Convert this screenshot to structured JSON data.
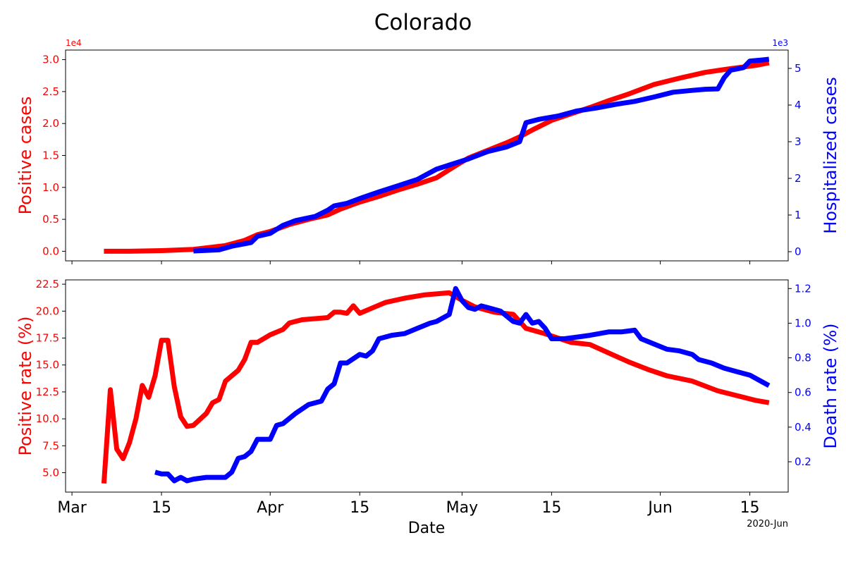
{
  "title": "Colorado",
  "chart_data": [
    {
      "type": "line",
      "panel": "top",
      "xlabel": "",
      "ylabel_left": "Positive cases",
      "ylabel_right": "Hospitalized cases",
      "offset_left": "1e4",
      "offset_right": "1e3",
      "ylim_left": [
        -0.15,
        3.15
      ],
      "ylim_right": [
        -0.25,
        5.5
      ],
      "yticks_left": [
        0.0,
        0.5,
        1.0,
        1.5,
        2.0,
        2.5,
        3.0
      ],
      "ytick_labels_left": [
        "0.0",
        "0.5",
        "1.0",
        "1.5",
        "2.0",
        "2.5",
        "3.0"
      ],
      "yticks_right": [
        0,
        1,
        2,
        3,
        4,
        5
      ],
      "ytick_labels_right": [
        "0",
        "1",
        "2",
        "3",
        "4",
        "5"
      ],
      "left_color": "#ff0000",
      "right_color": "#0000ff",
      "series": [
        {
          "axis": "left",
          "color": "#ff0000",
          "points": [
            [
              "2020-03-06",
              0.0
            ],
            [
              "2020-03-10",
              0.0
            ],
            [
              "2020-03-15",
              0.01
            ],
            [
              "2020-03-20",
              0.03
            ],
            [
              "2020-03-25",
              0.09
            ],
            [
              "2020-03-28",
              0.17
            ],
            [
              "2020-03-30",
              0.26
            ],
            [
              "2020-04-01",
              0.31
            ],
            [
              "2020-04-04",
              0.42
            ],
            [
              "2020-04-07",
              0.5
            ],
            [
              "2020-04-10",
              0.57
            ],
            [
              "2020-04-12",
              0.66
            ],
            [
              "2020-04-15",
              0.77
            ],
            [
              "2020-04-18",
              0.86
            ],
            [
              "2020-04-21",
              0.96
            ],
            [
              "2020-04-24",
              1.05
            ],
            [
              "2020-04-27",
              1.15
            ],
            [
              "2020-04-30",
              1.34
            ],
            [
              "2020-05-02",
              1.46
            ],
            [
              "2020-05-05",
              1.58
            ],
            [
              "2020-05-08",
              1.7
            ],
            [
              "2020-05-10",
              1.79
            ],
            [
              "2020-05-12",
              1.9
            ],
            [
              "2020-05-15",
              2.05
            ],
            [
              "2020-05-18",
              2.15
            ],
            [
              "2020-05-21",
              2.25
            ],
            [
              "2020-05-24",
              2.36
            ],
            [
              "2020-05-27",
              2.46
            ],
            [
              "2020-05-31",
              2.61
            ],
            [
              "2020-06-04",
              2.71
            ],
            [
              "2020-06-08",
              2.8
            ],
            [
              "2020-06-12",
              2.86
            ],
            [
              "2020-06-16",
              2.91
            ],
            [
              "2020-06-18",
              2.95
            ]
          ]
        },
        {
          "axis": "right",
          "color": "#0000ff",
          "points": [
            [
              "2020-03-20",
              0.02
            ],
            [
              "2020-03-24",
              0.05
            ],
            [
              "2020-03-26",
              0.15
            ],
            [
              "2020-03-29",
              0.25
            ],
            [
              "2020-03-30",
              0.42
            ],
            [
              "2020-04-01",
              0.5
            ],
            [
              "2020-04-03",
              0.72
            ],
            [
              "2020-04-05",
              0.85
            ],
            [
              "2020-04-08",
              0.96
            ],
            [
              "2020-04-10",
              1.13
            ],
            [
              "2020-04-11",
              1.25
            ],
            [
              "2020-04-13",
              1.32
            ],
            [
              "2020-04-15",
              1.45
            ],
            [
              "2020-04-18",
              1.63
            ],
            [
              "2020-04-21",
              1.8
            ],
            [
              "2020-04-24",
              1.97
            ],
            [
              "2020-04-27",
              2.25
            ],
            [
              "2020-04-30",
              2.42
            ],
            [
              "2020-05-02",
              2.53
            ],
            [
              "2020-05-05",
              2.73
            ],
            [
              "2020-05-08",
              2.86
            ],
            [
              "2020-05-10",
              3.0
            ],
            [
              "2020-05-11",
              3.52
            ],
            [
              "2020-05-13",
              3.61
            ],
            [
              "2020-05-16",
              3.7
            ],
            [
              "2020-05-19",
              3.84
            ],
            [
              "2020-05-22",
              3.92
            ],
            [
              "2020-05-25",
              4.02
            ],
            [
              "2020-05-28",
              4.1
            ],
            [
              "2020-05-31",
              4.22
            ],
            [
              "2020-06-03",
              4.35
            ],
            [
              "2020-06-06",
              4.4
            ],
            [
              "2020-06-08",
              4.43
            ],
            [
              "2020-06-10",
              4.44
            ],
            [
              "2020-06-11",
              4.75
            ],
            [
              "2020-06-12",
              4.95
            ],
            [
              "2020-06-14",
              5.02
            ],
            [
              "2020-06-15",
              5.2
            ],
            [
              "2020-06-17",
              5.23
            ],
            [
              "2020-06-18",
              5.25
            ]
          ]
        }
      ]
    },
    {
      "type": "line",
      "panel": "bottom",
      "xlabel": "Date",
      "ylabel_left": "Positive rate (%)",
      "ylabel_right": "Death rate (%)",
      "ylim_left": [
        3.2,
        22.9
      ],
      "ylim_right": [
        0.025,
        1.25
      ],
      "yticks_left": [
        5.0,
        7.5,
        10.0,
        12.5,
        15.0,
        17.5,
        20.0,
        22.5
      ],
      "ytick_labels_left": [
        "5.0",
        "7.5",
        "10.0",
        "12.5",
        "15.0",
        "17.5",
        "20.0",
        "22.5"
      ],
      "yticks_right": [
        0.2,
        0.4,
        0.6,
        0.8,
        1.0,
        1.2
      ],
      "ytick_labels_right": [
        "0.2",
        "0.4",
        "0.6",
        "0.8",
        "1.0",
        "1.2"
      ],
      "left_color": "#ff0000",
      "right_color": "#0000ff",
      "xticks": [
        "2020-03-01",
        "2020-03-15",
        "2020-04-01",
        "2020-04-15",
        "2020-05-01",
        "2020-05-15",
        "2020-06-01",
        "2020-06-15"
      ],
      "xtick_labels": [
        "Mar",
        "15",
        "Apr",
        "15",
        "May",
        "15",
        "Jun",
        "15"
      ],
      "x_offset_label": "2020-Jun",
      "xlim": [
        "2020-02-29",
        "2020-06-21"
      ],
      "series": [
        {
          "axis": "left",
          "color": "#ff0000",
          "points": [
            [
              "2020-03-06",
              4.0
            ],
            [
              "2020-03-07",
              12.7
            ],
            [
              "2020-03-08",
              7.2
            ],
            [
              "2020-03-09",
              6.3
            ],
            [
              "2020-03-10",
              7.8
            ],
            [
              "2020-03-11",
              10.0
            ],
            [
              "2020-03-12",
              13.1
            ],
            [
              "2020-03-13",
              12.0
            ],
            [
              "2020-03-14",
              14.0
            ],
            [
              "2020-03-15",
              17.3
            ],
            [
              "2020-03-16",
              17.3
            ],
            [
              "2020-03-17",
              13.0
            ],
            [
              "2020-03-18",
              10.2
            ],
            [
              "2020-03-19",
              9.3
            ],
            [
              "2020-03-20",
              9.4
            ],
            [
              "2020-03-22",
              10.5
            ],
            [
              "2020-03-23",
              11.5
            ],
            [
              "2020-03-24",
              11.8
            ],
            [
              "2020-03-25",
              13.5
            ],
            [
              "2020-03-27",
              14.5
            ],
            [
              "2020-03-28",
              15.5
            ],
            [
              "2020-03-29",
              17.1
            ],
            [
              "2020-03-30",
              17.1
            ],
            [
              "2020-04-01",
              17.8
            ],
            [
              "2020-04-03",
              18.3
            ],
            [
              "2020-04-04",
              18.9
            ],
            [
              "2020-04-06",
              19.2
            ],
            [
              "2020-04-10",
              19.4
            ],
            [
              "2020-04-11",
              19.9
            ],
            [
              "2020-04-12",
              19.9
            ],
            [
              "2020-04-13",
              19.8
            ],
            [
              "2020-04-14",
              20.5
            ],
            [
              "2020-04-15",
              19.8
            ],
            [
              "2020-04-17",
              20.3
            ],
            [
              "2020-04-19",
              20.8
            ],
            [
              "2020-04-22",
              21.2
            ],
            [
              "2020-04-25",
              21.5
            ],
            [
              "2020-04-29",
              21.7
            ],
            [
              "2020-05-01",
              21.0
            ],
            [
              "2020-05-03",
              20.4
            ],
            [
              "2020-05-06",
              19.9
            ],
            [
              "2020-05-09",
              19.7
            ],
            [
              "2020-05-11",
              18.4
            ],
            [
              "2020-05-14",
              17.9
            ],
            [
              "2020-05-18",
              17.1
            ],
            [
              "2020-05-21",
              16.9
            ],
            [
              "2020-05-24",
              16.1
            ],
            [
              "2020-05-27",
              15.3
            ],
            [
              "2020-05-30",
              14.6
            ],
            [
              "2020-06-02",
              14.0
            ],
            [
              "2020-06-06",
              13.5
            ],
            [
              "2020-06-10",
              12.6
            ],
            [
              "2020-06-14",
              12.0
            ],
            [
              "2020-06-16",
              11.7
            ],
            [
              "2020-06-18",
              11.5
            ]
          ]
        },
        {
          "axis": "right",
          "color": "#0000ff",
          "points": [
            [
              "2020-03-14",
              0.14
            ],
            [
              "2020-03-15",
              0.13
            ],
            [
              "2020-03-16",
              0.13
            ],
            [
              "2020-03-17",
              0.09
            ],
            [
              "2020-03-18",
              0.11
            ],
            [
              "2020-03-19",
              0.09
            ],
            [
              "2020-03-20",
              0.1
            ],
            [
              "2020-03-22",
              0.11
            ],
            [
              "2020-03-25",
              0.11
            ],
            [
              "2020-03-26",
              0.14
            ],
            [
              "2020-03-27",
              0.22
            ],
            [
              "2020-03-28",
              0.23
            ],
            [
              "2020-03-29",
              0.26
            ],
            [
              "2020-03-30",
              0.33
            ],
            [
              "2020-04-01",
              0.33
            ],
            [
              "2020-04-02",
              0.41
            ],
            [
              "2020-04-03",
              0.42
            ],
            [
              "2020-04-05",
              0.48
            ],
            [
              "2020-04-07",
              0.53
            ],
            [
              "2020-04-09",
              0.55
            ],
            [
              "2020-04-10",
              0.62
            ],
            [
              "2020-04-11",
              0.65
            ],
            [
              "2020-04-12",
              0.77
            ],
            [
              "2020-04-13",
              0.77
            ],
            [
              "2020-04-15",
              0.82
            ],
            [
              "2020-04-16",
              0.81
            ],
            [
              "2020-04-17",
              0.84
            ],
            [
              "2020-04-18",
              0.91
            ],
            [
              "2020-04-20",
              0.93
            ],
            [
              "2020-04-22",
              0.94
            ],
            [
              "2020-04-24",
              0.97
            ],
            [
              "2020-04-26",
              1.0
            ],
            [
              "2020-04-27",
              1.01
            ],
            [
              "2020-04-29",
              1.05
            ],
            [
              "2020-04-30",
              1.2
            ],
            [
              "2020-05-01",
              1.13
            ],
            [
              "2020-05-02",
              1.09
            ],
            [
              "2020-05-03",
              1.08
            ],
            [
              "2020-05-04",
              1.1
            ],
            [
              "2020-05-05",
              1.09
            ],
            [
              "2020-05-07",
              1.07
            ],
            [
              "2020-05-09",
              1.01
            ],
            [
              "2020-05-10",
              1.0
            ],
            [
              "2020-05-11",
              1.05
            ],
            [
              "2020-05-12",
              1.0
            ],
            [
              "2020-05-13",
              1.01
            ],
            [
              "2020-05-14",
              0.97
            ],
            [
              "2020-05-15",
              0.91
            ],
            [
              "2020-05-17",
              0.91
            ],
            [
              "2020-05-19",
              0.92
            ],
            [
              "2020-05-21",
              0.93
            ],
            [
              "2020-05-24",
              0.95
            ],
            [
              "2020-05-26",
              0.95
            ],
            [
              "2020-05-28",
              0.96
            ],
            [
              "2020-05-29",
              0.91
            ],
            [
              "2020-05-31",
              0.88
            ],
            [
              "2020-06-02",
              0.85
            ],
            [
              "2020-06-04",
              0.84
            ],
            [
              "2020-06-06",
              0.82
            ],
            [
              "2020-06-07",
              0.79
            ],
            [
              "2020-06-09",
              0.77
            ],
            [
              "2020-06-11",
              0.74
            ],
            [
              "2020-06-13",
              0.72
            ],
            [
              "2020-06-15",
              0.7
            ],
            [
              "2020-06-17",
              0.66
            ],
            [
              "2020-06-18",
              0.64
            ]
          ]
        }
      ]
    }
  ]
}
